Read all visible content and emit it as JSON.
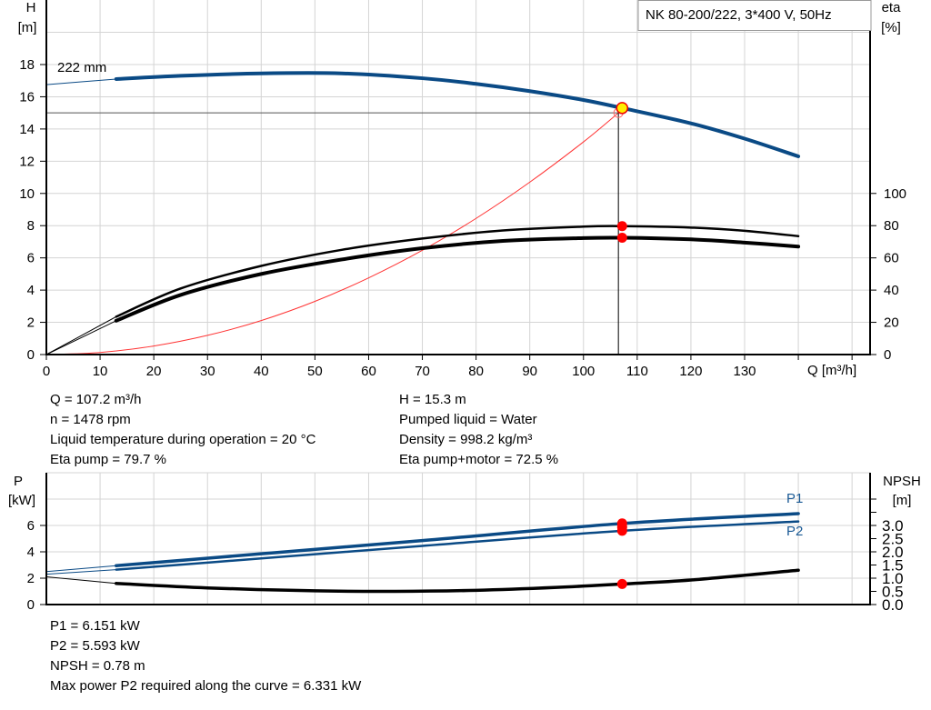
{
  "chart_data": [
    {
      "type": "line",
      "title": "NK 80-200/222, 3*400 V, 50Hz",
      "xlabel": "Q [m³/h]",
      "ylabel": "H\n[m]",
      "ylabel_right": "eta\n[%]",
      "xlim": [
        0,
        150
      ],
      "ylim": [
        0,
        22
      ],
      "ylim_right": [
        0,
        220
      ],
      "grid": true,
      "x_ticks": [
        0,
        10,
        20,
        30,
        40,
        50,
        60,
        70,
        80,
        90,
        100,
        110,
        120,
        130
      ],
      "y_ticks": [
        0,
        2,
        4,
        6,
        8,
        10,
        12,
        14,
        16,
        18
      ],
      "y_ticks_right": [
        0,
        20,
        40,
        60,
        80,
        100
      ],
      "curve_label": "222 mm",
      "series": [
        {
          "name": "H",
          "color": "#0a4a85",
          "x": [
            0,
            13,
            25,
            40,
            55,
            70,
            80,
            90,
            100,
            107.2,
            120,
            130,
            140
          ],
          "y": [
            16.75,
            17.1,
            17.3,
            17.45,
            17.45,
            17.15,
            16.8,
            16.35,
            15.8,
            15.3,
            14.35,
            13.4,
            12.3
          ]
        },
        {
          "name": "Eta pump",
          "color": "#000000",
          "axis": "right",
          "x": [
            0,
            13,
            25,
            40,
            55,
            70,
            85,
            100,
            107.2,
            120,
            130,
            140
          ],
          "y": [
            0,
            23.5,
            41,
            55,
            65,
            72,
            77,
            79.4,
            79.7,
            78.8,
            76.8,
            73.5
          ]
        },
        {
          "name": "Eta pump+motor",
          "color": "#000000",
          "axis": "right",
          "x": [
            0,
            13,
            25,
            40,
            55,
            70,
            85,
            100,
            107.2,
            120,
            130,
            140
          ],
          "y": [
            0,
            21,
            37,
            50,
            59,
            66,
            70.5,
            72.3,
            72.5,
            71.5,
            69.5,
            67
          ]
        },
        {
          "name": "System curve",
          "color": "#ff3333",
          "x": [
            0,
            10,
            20,
            30,
            40,
            50,
            60,
            70,
            80,
            90,
            100,
            106.5
          ],
          "y": [
            0,
            0.13,
            0.53,
            1.19,
            2.11,
            3.3,
            4.76,
            6.47,
            8.45,
            10.7,
            13.2,
            15.0
          ]
        }
      ],
      "duty_point": {
        "Q": 107.2,
        "H": 15.3,
        "eta_pump": 79.7,
        "eta_total": 72.5
      },
      "requested_point": {
        "Q": 106.5,
        "H": 15.0
      }
    },
    {
      "type": "line",
      "ylabel": "P\n[kW]",
      "ylabel_right": "NPSH\n[m]",
      "xlim": [
        0,
        150
      ],
      "ylim": [
        0,
        10
      ],
      "ylim_right": [
        0,
        5
      ],
      "grid": true,
      "y_ticks": [
        0,
        2,
        4,
        6
      ],
      "y_ticks_right": [
        "0.0",
        "0.5",
        "1.0",
        "1.5",
        "2.0",
        "2.5",
        "3.0"
      ],
      "series": [
        {
          "name": "P1",
          "color": "#0a4a85",
          "x": [
            0,
            13,
            40,
            70,
            107.2,
            140
          ],
          "y": [
            2.5,
            2.95,
            3.85,
            4.85,
            6.151,
            6.9
          ]
        },
        {
          "name": "P2",
          "color": "#0a4a85",
          "x": [
            0,
            13,
            40,
            70,
            107.2,
            140
          ],
          "y": [
            2.3,
            2.65,
            3.5,
            4.45,
            5.593,
            6.3
          ]
        },
        {
          "name": "NPSH",
          "color": "#000000",
          "axis": "right",
          "x": [
            0,
            13,
            30,
            50,
            65,
            80,
            95,
            107.2,
            120,
            140
          ],
          "y": [
            1.05,
            0.8,
            0.63,
            0.52,
            0.5,
            0.54,
            0.65,
            0.78,
            0.93,
            1.3
          ]
        }
      ]
    }
  ],
  "info_top": {
    "left": [
      "Q = 107.2 m³/h",
      "n = 1478 rpm",
      "Liquid temperature during operation = 20 °C",
      "Eta pump = 79.7 %"
    ],
    "right": [
      "H = 15.3 m",
      "Pumped liquid = Water",
      "Density = 998.2 kg/m³",
      "Eta pump+motor = 72.5 %"
    ]
  },
  "info_bottom": [
    "P1 = 6.151 kW",
    "P2 = 5.593 kW",
    "NPSH = 0.78 m",
    "Max power P2 required along the curve = 6.331 kW"
  ]
}
